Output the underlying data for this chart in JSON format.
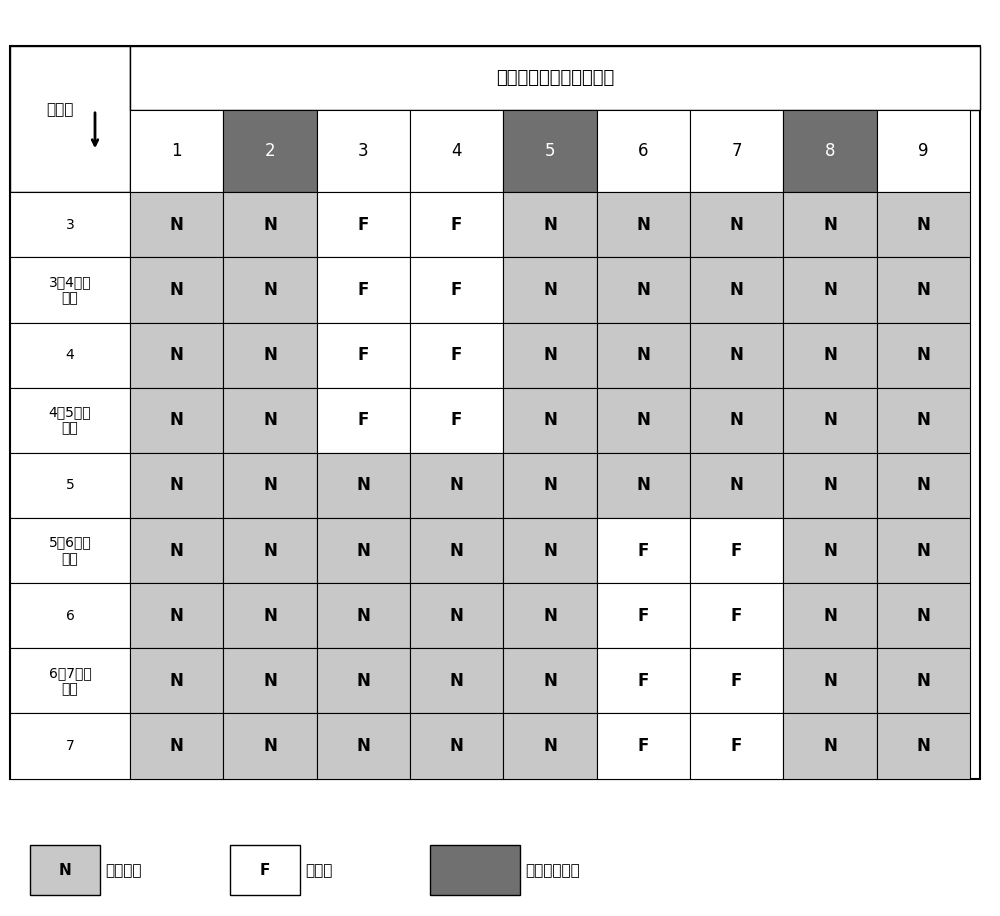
{
  "title": "绝缘子发生闪络的杆塔号",
  "row_header_label": "雷击点",
  "col_headers": [
    "1",
    "2",
    "3",
    "4",
    "5",
    "6",
    "7",
    "8",
    "9"
  ],
  "row_headers": [
    "3",
    "3与4档距\n中央",
    "4",
    "4与5档距\n中央",
    "5",
    "5与6档距\n中央",
    "6",
    "6与7档距\n中央",
    "7"
  ],
  "col_dark_indices": [
    1,
    4,
    7
  ],
  "cell_data": [
    [
      "N",
      "N",
      "F",
      "F",
      "N",
      "N",
      "N",
      "N",
      "N"
    ],
    [
      "N",
      "N",
      "F",
      "F",
      "N",
      "N",
      "N",
      "N",
      "N"
    ],
    [
      "N",
      "N",
      "F",
      "F",
      "N",
      "N",
      "N",
      "N",
      "N"
    ],
    [
      "N",
      "N",
      "F",
      "F",
      "N",
      "N",
      "N",
      "N",
      "N"
    ],
    [
      "N",
      "N",
      "N",
      "N",
      "N",
      "N",
      "N",
      "N",
      "N"
    ],
    [
      "N",
      "N",
      "N",
      "N",
      "N",
      "F",
      "F",
      "N",
      "N"
    ],
    [
      "N",
      "N",
      "N",
      "N",
      "N",
      "F",
      "F",
      "N",
      "N"
    ],
    [
      "N",
      "N",
      "N",
      "N",
      "N",
      "F",
      "F",
      "N",
      "N"
    ],
    [
      "N",
      "N",
      "N",
      "N",
      "N",
      "F",
      "F",
      "N",
      "N"
    ]
  ],
  "color_N": "#c8c8c8",
  "color_F": "#ffffff",
  "color_dark": "#707070",
  "color_border": "#000000",
  "color_header_bg": "#ffffff",
  "legend_N_label": "一无闪络",
  "legend_F_label": "一闪络",
  "legend_dark_label": "一配置避雷器",
  "fig_width": 10.0,
  "fig_height": 9.16
}
